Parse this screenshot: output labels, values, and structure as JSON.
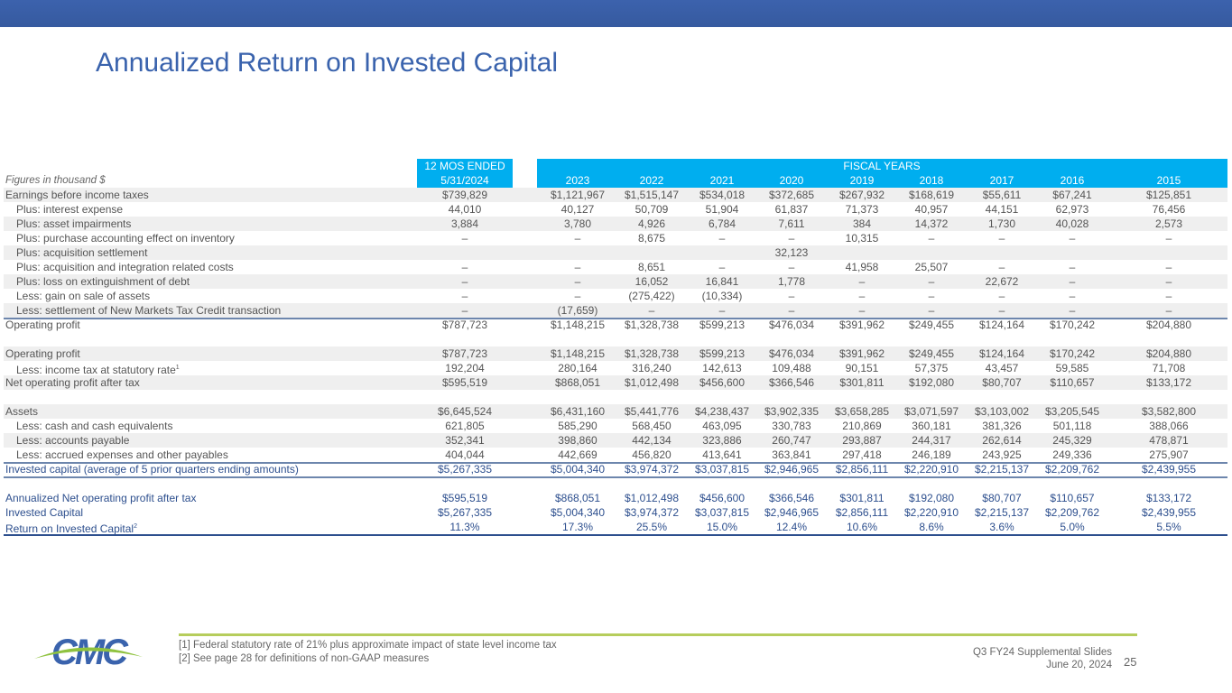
{
  "title": "Annualized Return on Invested Capital",
  "table": {
    "units_note": "Figures in thousand $",
    "header_12mos": [
      "12 MOS ENDED",
      "5/31/2024"
    ],
    "header_fiscal": "FISCAL YEARS",
    "columns": [
      "5/31/2024",
      "2023",
      "2022",
      "2021",
      "2020",
      "2019",
      "2018",
      "2017",
      "2016",
      "2015"
    ],
    "rows": [
      {
        "label": "Earnings before income taxes",
        "values": [
          "$739,829",
          "$1,121,967",
          "$1,515,147",
          "$534,018",
          "$372,685",
          "$267,932",
          "$168,619",
          "$55,611",
          "$67,241",
          "$125,851"
        ]
      },
      {
        "label": "Plus: interest expense",
        "values": [
          "44,010",
          "40,127",
          "50,709",
          "51,904",
          "61,837",
          "71,373",
          "40,957",
          "44,151",
          "62,973",
          "76,456"
        ]
      },
      {
        "label": "Plus: asset impairments",
        "values": [
          "3,884",
          "3,780",
          "4,926",
          "6,784",
          "7,611",
          "384",
          "14,372",
          "1,730",
          "40,028",
          "2,573"
        ]
      },
      {
        "label": "Plus: purchase accounting effect on inventory",
        "values": [
          "–",
          "–",
          "8,675",
          "–",
          "–",
          "10,315",
          "–",
          "–",
          "–",
          "–"
        ]
      },
      {
        "label": "Plus: acquisition settlement",
        "values": [
          "",
          "",
          "",
          "",
          "32,123",
          "",
          "",
          "",
          "",
          ""
        ]
      },
      {
        "label": "Plus: acquisition and integration related costs",
        "values": [
          "–",
          "–",
          "8,651",
          "–",
          "–",
          "41,958",
          "25,507",
          "–",
          "–",
          "–"
        ]
      },
      {
        "label": "Plus: loss on extinguishment of debt",
        "values": [
          "–",
          "–",
          "16,052",
          "16,841",
          "1,778",
          "–",
          "–",
          "22,672",
          "–",
          "–"
        ]
      },
      {
        "label": "Less: gain on sale of assets",
        "values": [
          "–",
          "–",
          "(275,422)",
          "(10,334)",
          "–",
          "–",
          "–",
          "–",
          "–",
          "–"
        ]
      },
      {
        "label": "Less: settlement of New Markets Tax Credit transaction",
        "values": [
          "–",
          "(17,659)",
          "–",
          "–",
          "–",
          "–",
          "–",
          "–",
          "–",
          "–"
        ]
      },
      {
        "label": "Operating profit",
        "values": [
          "$787,723",
          "$1,148,215",
          "$1,328,738",
          "$599,213",
          "$476,034",
          "$391,962",
          "$249,455",
          "$124,164",
          "$170,242",
          "$204,880"
        ]
      },
      {
        "label": "Operating profit",
        "values": [
          "$787,723",
          "$1,148,215",
          "$1,328,738",
          "$599,213",
          "$476,034",
          "$391,962",
          "$249,455",
          "$124,164",
          "$170,242",
          "$204,880"
        ]
      },
      {
        "label": "Less: income tax at statutory rate",
        "sup": "1",
        "values": [
          "192,204",
          "280,164",
          "316,240",
          "142,613",
          "109,488",
          "90,151",
          "57,375",
          "43,457",
          "59,585",
          "71,708"
        ]
      },
      {
        "label": "Net operating profit after tax",
        "values": [
          "$595,519",
          "$868,051",
          "$1,012,498",
          "$456,600",
          "$366,546",
          "$301,811",
          "$192,080",
          "$80,707",
          "$110,657",
          "$133,172"
        ]
      },
      {
        "label": "Assets",
        "values": [
          "$6,645,524",
          "$6,431,160",
          "$5,441,776",
          "$4,238,437",
          "$3,902,335",
          "$3,658,285",
          "$3,071,597",
          "$3,103,002",
          "$3,205,545",
          "$3,582,800"
        ]
      },
      {
        "label": "Less: cash and cash equivalents",
        "values": [
          "621,805",
          "585,290",
          "568,450",
          "463,095",
          "330,783",
          "210,869",
          "360,181",
          "381,326",
          "501,118",
          "388,066"
        ]
      },
      {
        "label": "Less: accounts payable",
        "values": [
          "352,341",
          "398,860",
          "442,134",
          "323,886",
          "260,747",
          "293,887",
          "244,317",
          "262,614",
          "245,329",
          "478,871"
        ]
      },
      {
        "label": "Less: accrued expenses and other payables",
        "values": [
          "404,044",
          "442,669",
          "456,820",
          "413,641",
          "363,841",
          "297,418",
          "246,189",
          "243,925",
          "249,336",
          "275,907"
        ]
      },
      {
        "label": "Invested capital (average of 5 prior quarters ending amounts)",
        "values": [
          "$5,267,335",
          "$5,004,340",
          "$3,974,372",
          "$3,037,815",
          "$2,946,965",
          "$2,856,111",
          "$2,220,910",
          "$2,215,137",
          "$2,209,762",
          "$2,439,955"
        ]
      },
      {
        "label": "Annualized Net operating profit after tax",
        "values": [
          "$595,519",
          "$868,051",
          "$1,012,498",
          "$456,600",
          "$366,546",
          "$301,811",
          "$192,080",
          "$80,707",
          "$110,657",
          "$133,172"
        ]
      },
      {
        "label": "Invested Capital",
        "values": [
          "$5,267,335",
          "$5,004,340",
          "$3,974,372",
          "$3,037,815",
          "$2,946,965",
          "$2,856,111",
          "$2,220,910",
          "$2,215,137",
          "$2,209,762",
          "$2,439,955"
        ]
      },
      {
        "label": "Return on Invested Capital",
        "sup": "2",
        "values": [
          "11.3%",
          "17.3%",
          "25.5%",
          "15.0%",
          "12.4%",
          "10.6%",
          "8.6%",
          "3.6%",
          "5.0%",
          "5.5%"
        ]
      }
    ]
  },
  "footer": {
    "footnotes": [
      "[1] Federal statutory rate of 21% plus approximate impact of state level income tax",
      "[2] See page 28 for definitions of non-GAAP measures"
    ],
    "deck": "Q3 FY24 Supplemental Slides",
    "date": "June 20, 2024",
    "page": "25",
    "logo_text": "CMC"
  },
  "colors": {
    "title": "#3a63ad",
    "header": "#00aeef",
    "accent_line": "#b6cd5c",
    "total_text": "#2d4f8e"
  }
}
